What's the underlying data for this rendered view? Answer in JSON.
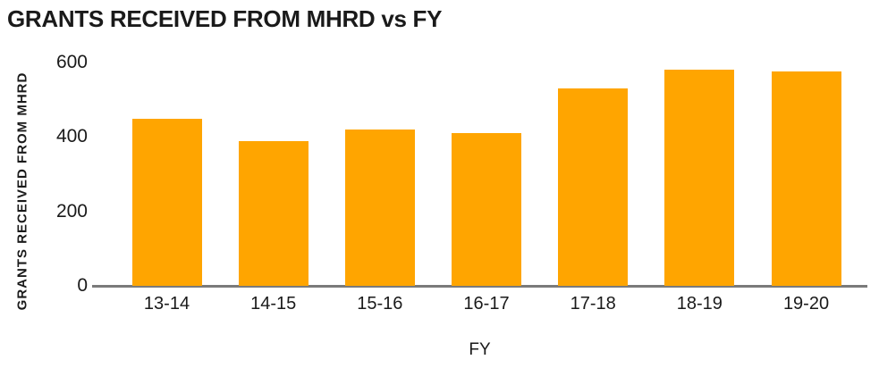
{
  "chart_data": {
    "type": "bar",
    "title": "GRANTS RECEIVED FROM MHRD vs FY",
    "categories": [
      "13-14",
      "14-15",
      "15-16",
      "16-17",
      "17-18",
      "18-19",
      "19-20"
    ],
    "values": [
      450,
      390,
      420,
      410,
      530,
      580,
      575
    ],
    "xlabel": "FY",
    "ylabel": "GRANTS RECEIVED FROM MHRD",
    "ylim": [
      0,
      600
    ],
    "yticks": [
      0,
      200,
      400,
      600
    ],
    "grid": false,
    "legend": "none",
    "bar_color": "#FFA500",
    "axis_line_color": "#7a7a7a",
    "text_color": "#1a1a1a",
    "background_color": "#ffffff"
  }
}
